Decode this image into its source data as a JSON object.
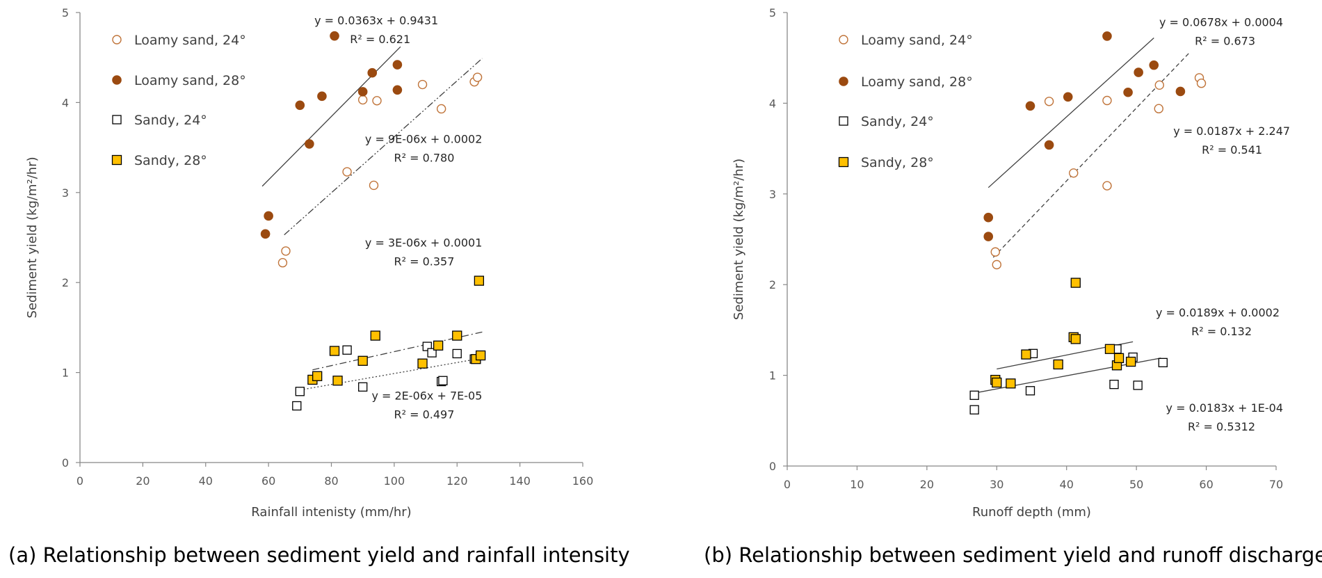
{
  "colors": {
    "loamy24": "#c0743a",
    "loamy28": "#9b4a10",
    "sandy28_fill": "#ffc000",
    "axis": "#888888",
    "trend": "#404040"
  },
  "chart_data": [
    {
      "type": "scatter",
      "title": "",
      "caption": "(a) Relationship between sediment yield and rainfall intensity",
      "xlabel": "Rainfall intenisty (mm/hr)",
      "ylabel": "Sediment yield (kg/m²/hr)",
      "xlim": [
        0,
        160
      ],
      "ylim": [
        0,
        5
      ],
      "xticks": [
        0,
        20,
        40,
        60,
        80,
        100,
        120,
        140,
        160
      ],
      "yticks": [
        0,
        1,
        2,
        3,
        4,
        5
      ],
      "legend_position": "top-left",
      "series": [
        {
          "name": "Loamy sand, 24°",
          "marker": "circle-open",
          "color": "#c0743a",
          "points": [
            [
              64.5,
              2.22
            ],
            [
              65.5,
              2.35
            ],
            [
              85,
              3.23
            ],
            [
              90,
              4.03
            ],
            [
              93.5,
              3.08
            ],
            [
              94.5,
              4.02
            ],
            [
              109,
              4.2
            ],
            [
              115,
              3.93
            ],
            [
              125.5,
              4.23
            ],
            [
              126.5,
              4.28
            ]
          ]
        },
        {
          "name": "Loamy sand, 28°",
          "marker": "circle-filled",
          "color": "#9b4a10",
          "points": [
            [
              59,
              2.54
            ],
            [
              60,
              2.74
            ],
            [
              70,
              3.97
            ],
            [
              73,
              3.54
            ],
            [
              77,
              4.07
            ],
            [
              81,
              4.74
            ],
            [
              90,
              4.12
            ],
            [
              93,
              4.33
            ],
            [
              101,
              4.42
            ],
            [
              101,
              4.14
            ]
          ]
        },
        {
          "name": "Sandy, 24°",
          "marker": "square-open",
          "color": "#000000",
          "points": [
            [
              69,
              0.63
            ],
            [
              70,
              0.79
            ],
            [
              85,
              1.25
            ],
            [
              90,
              0.84
            ],
            [
              110.5,
              1.29
            ],
            [
              112,
              1.22
            ],
            [
              115,
              0.9
            ],
            [
              115.5,
              0.91
            ],
            [
              120,
              1.21
            ],
            [
              125.5,
              1.15
            ]
          ]
        },
        {
          "name": "Sandy, 28°",
          "marker": "square-filled",
          "color": "#ffc000",
          "points": [
            [
              74,
              0.92
            ],
            [
              75.5,
              0.96
            ],
            [
              81,
              1.24
            ],
            [
              82,
              0.91
            ],
            [
              90,
              1.13
            ],
            [
              94,
              1.41
            ],
            [
              109,
              1.1
            ],
            [
              114,
              1.3
            ],
            [
              120,
              1.41
            ],
            [
              126,
              1.15
            ],
            [
              127,
              2.02
            ],
            [
              127.5,
              1.19
            ]
          ]
        }
      ],
      "trendlines": [
        {
          "name": "trend-loamy-28",
          "style": "solid",
          "from": [
            58,
            3.07
          ],
          "to": [
            102,
            4.62
          ],
          "equation": "y = 0.0363x + 0.9431",
          "r2": "R² = 0.621",
          "label_anchor": [
            114,
            4.87
          ]
        },
        {
          "name": "trend-loamy-24",
          "style": "dashdotdot",
          "from": [
            65,
            2.53
          ],
          "to": [
            128,
            4.49
          ],
          "equation": "y = 9E-06x + 0.0002",
          "r2": "R² = 0.780",
          "label_anchor": [
            128,
            3.55
          ]
        },
        {
          "name": "trend-sandy-28",
          "style": "dashdot",
          "from": [
            74,
            1.03
          ],
          "to": [
            128,
            1.45
          ],
          "equation": "y = 3E-06x + 0.0001",
          "r2": "R² = 0.357",
          "label_anchor": [
            128,
            2.4
          ]
        },
        {
          "name": "trend-sandy-24",
          "style": "dotted",
          "from": [
            69,
            0.8
          ],
          "to": [
            128,
            1.16
          ],
          "equation": "y = 2E-06x + 7E-05",
          "r2": "R² = 0.497",
          "label_anchor": [
            128,
            0.7
          ]
        }
      ]
    },
    {
      "type": "scatter",
      "title": "",
      "caption": "(b) Relationship between sediment yield and runoff discharge",
      "xlabel": "Runoff depth (mm)",
      "ylabel": "Sediment yield (kg/m²/hr)",
      "xlim": [
        0,
        70
      ],
      "ylim": [
        0,
        5
      ],
      "xticks": [
        0,
        10,
        20,
        30,
        40,
        50,
        60,
        70
      ],
      "yticks": [
        0,
        1,
        2,
        3,
        4,
        5
      ],
      "legend_position": "top-left",
      "series": [
        {
          "name": "Loamy sand, 24°",
          "marker": "circle-open",
          "color": "#c0743a",
          "points": [
            [
              29.8,
              2.36
            ],
            [
              30,
              2.22
            ],
            [
              37.5,
              4.02
            ],
            [
              41,
              3.23
            ],
            [
              45.8,
              4.03
            ],
            [
              45.8,
              3.09
            ],
            [
              53.3,
              4.2
            ],
            [
              53.2,
              3.94
            ],
            [
              59,
              4.28
            ],
            [
              59.3,
              4.22
            ]
          ]
        },
        {
          "name": "Loamy sand, 28°",
          "marker": "circle-filled",
          "color": "#9b4a10",
          "points": [
            [
              28.8,
              2.74
            ],
            [
              28.8,
              2.53
            ],
            [
              34.8,
              3.97
            ],
            [
              37.5,
              3.54
            ],
            [
              40.2,
              4.07
            ],
            [
              45.8,
              4.74
            ],
            [
              48.8,
              4.12
            ],
            [
              50.3,
              4.34
            ],
            [
              52.5,
              4.42
            ],
            [
              56.3,
              4.13
            ]
          ]
        },
        {
          "name": "Sandy, 24°",
          "marker": "square-open",
          "color": "#000000",
          "points": [
            [
              26.8,
              0.78
            ],
            [
              26.8,
              0.62
            ],
            [
              34.8,
              0.83
            ],
            [
              35.2,
              1.24
            ],
            [
              46.8,
              0.9
            ],
            [
              47.2,
              1.29
            ],
            [
              49.5,
              1.2
            ],
            [
              50.2,
              0.89
            ],
            [
              53.8,
              1.14
            ]
          ]
        },
        {
          "name": "Sandy, 28°",
          "marker": "square-filled",
          "color": "#ffc000",
          "points": [
            [
              29.8,
              0.95
            ],
            [
              30,
              0.92
            ],
            [
              32,
              0.91
            ],
            [
              34.2,
              1.23
            ],
            [
              38.8,
              1.12
            ],
            [
              41,
              1.42
            ],
            [
              41.3,
              1.4
            ],
            [
              41.3,
              2.02
            ],
            [
              46.2,
              1.29
            ],
            [
              47.2,
              1.11
            ],
            [
              47.5,
              1.19
            ],
            [
              49.2,
              1.15
            ]
          ]
        }
      ],
      "trendlines": [
        {
          "name": "trend-loamy-28",
          "style": "solid",
          "from": [
            28.8,
            3.07
          ],
          "to": [
            52.5,
            4.72
          ],
          "equation": "y = 0.0678x + 0.0004",
          "r2": "R² = 0.673",
          "label_anchor": [
            71,
            4.85
          ]
        },
        {
          "name": "trend-loamy-24",
          "style": "dashed",
          "from": [
            29.5,
            2.3
          ],
          "to": [
            57.5,
            4.55
          ],
          "equation": "y = 0.0187x + 2.247",
          "r2": "R² = 0.541",
          "label_anchor": [
            72,
            3.65
          ]
        },
        {
          "name": "trend-sandy-28",
          "style": "solid",
          "from": [
            30,
            1.07
          ],
          "to": [
            49.5,
            1.37
          ],
          "equation": "y = 0.0189x + 0.0002",
          "r2": "R² = 0.132",
          "label_anchor": [
            70.5,
            1.65
          ]
        },
        {
          "name": "trend-sandy-24",
          "style": "solid",
          "from": [
            26.5,
            0.8
          ],
          "to": [
            53.5,
            1.19
          ],
          "equation": "y = 0.0183x + 1E-04",
          "r2": "R² = 0.5312",
          "label_anchor": [
            71,
            0.6
          ]
        }
      ]
    }
  ]
}
